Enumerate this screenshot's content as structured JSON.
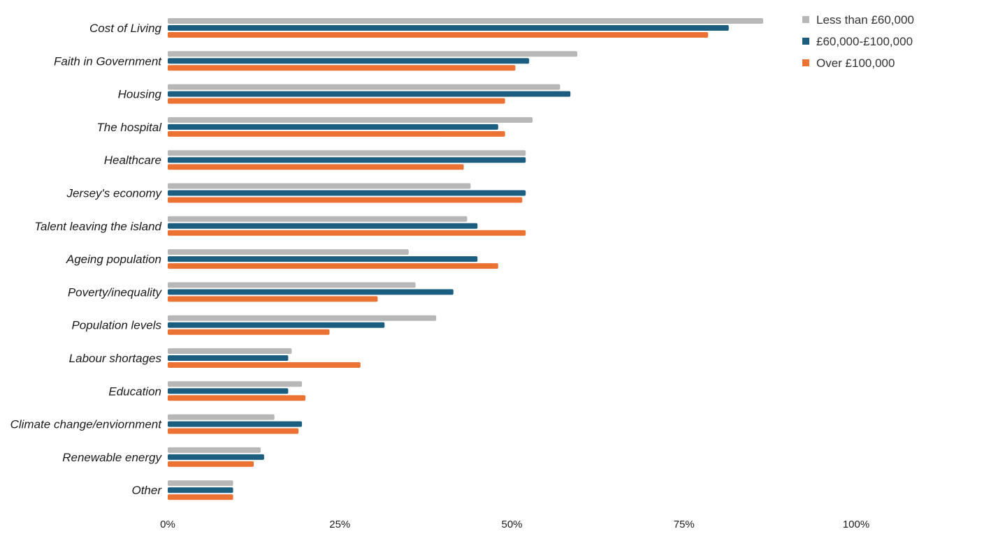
{
  "chart_data": {
    "type": "bar",
    "orientation": "horizontal",
    "categories": [
      "Cost of Living",
      "Faith in Government",
      "Housing",
      "The hospital",
      "Healthcare",
      "Jersey's economy",
      "Talent leaving the island",
      "Ageing population",
      "Poverty/inequality",
      "Population levels",
      "Labour shortages",
      "Education",
      "Climate change/enviornment",
      "Renewable energy",
      "Other"
    ],
    "series": [
      {
        "name": "Less than £60,000",
        "color": "#b7b7b7",
        "values": [
          86.5,
          59.5,
          57,
          53,
          52,
          44,
          43.5,
          35,
          36,
          39,
          18,
          19.5,
          15.5,
          13.5,
          9.5
        ]
      },
      {
        "name": "£60,000-£100,000",
        "color": "#1b5e80",
        "values": [
          81.5,
          52.5,
          58.5,
          48,
          52,
          52,
          45,
          45,
          41.5,
          31.5,
          17.5,
          17.5,
          19.5,
          14,
          9.5
        ]
      },
      {
        "name": "Over £100,000",
        "color": "#ec7234",
        "values": [
          78.5,
          50.5,
          49,
          49,
          43,
          51.5,
          52,
          48,
          30.5,
          23.5,
          28,
          20,
          19,
          12.5,
          9.5
        ]
      }
    ],
    "xlim": [
      0,
      100
    ],
    "xticks": [
      "0%",
      "25%",
      "50%",
      "75%",
      "100%"
    ],
    "grid": false,
    "legend_position": "top-right",
    "title": "",
    "xlabel": "",
    "ylabel": ""
  }
}
